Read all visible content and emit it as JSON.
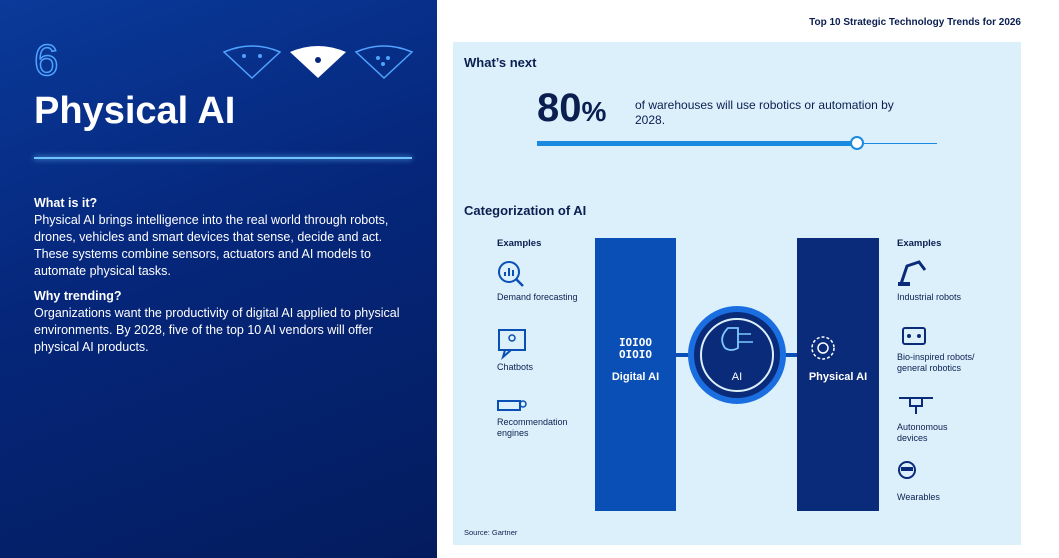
{
  "header": {
    "title": "Top 10 Strategic Technology Trends for 2026"
  },
  "trend": {
    "number": "6",
    "title": "Physical AI"
  },
  "sections": [
    {
      "heading": "What is it?",
      "body": "Physical AI brings intelligence into the real world through robots, drones, vehicles and smart devices that sense, decide and act. These systems combine sensors, actuators and AI models to automate physical tasks."
    },
    {
      "heading": "Why trending?",
      "body": "Organizations want the productivity of digital AI applied to physical environments. By 2028, five of the top 10 AI vendors will offer physical AI products."
    }
  ],
  "whats_next": {
    "heading": "What’s next",
    "value": 80,
    "unit": "%",
    "text": "of warehouses will use robotics or automation by 2028."
  },
  "categorization": {
    "heading": "Categorization of AI",
    "left": {
      "label": "Examples",
      "items": [
        "Demand forecasting",
        "Chatbots",
        "Recommendation engines"
      ]
    },
    "digital": {
      "label": "Digital AI",
      "icon": [
        "IOIOO",
        "OIOIO"
      ]
    },
    "core": "AI",
    "physical": {
      "label": "Physical AI"
    },
    "right": {
      "label": "Examples",
      "items": [
        "Industrial robots",
        "Bio-inspired robots/ general robotics",
        "Autonomous devices",
        "Wearables"
      ]
    }
  },
  "source": "Source: Gartner"
}
